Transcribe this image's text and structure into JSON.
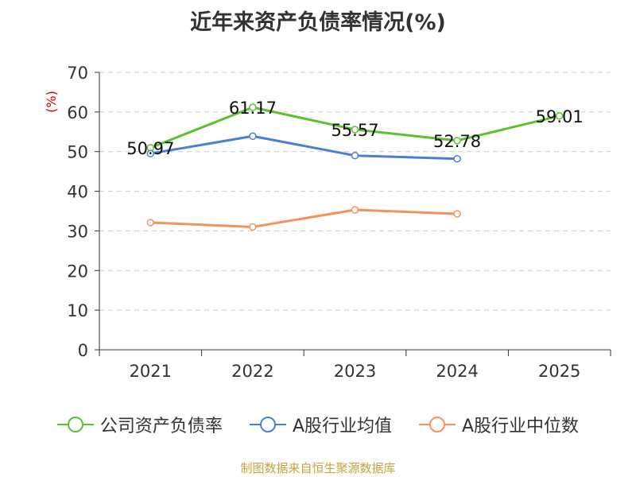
{
  "chart_data": {
    "type": "line",
    "title": "近年来资产负债率情况(%)",
    "ylabel": "(%)",
    "xlabel": "",
    "ylim": [
      0,
      70
    ],
    "yticks": [
      0,
      10,
      20,
      30,
      40,
      50,
      60,
      70
    ],
    "categories": [
      "2021",
      "2022",
      "2023",
      "2024",
      "2025"
    ],
    "grid": true,
    "legend_position": "bottom",
    "series": [
      {
        "name": "公司资产负债率",
        "color": "#5bc12c",
        "values": [
          50.97,
          61.17,
          55.57,
          52.78,
          59.01
        ],
        "data_labels": [
          "50.97",
          "61.17",
          "55.57",
          "52.78",
          "59.01"
        ]
      },
      {
        "name": "A股行业均值",
        "color": "#4a7fd8",
        "values": [
          49.5,
          53.9,
          49.0,
          48.2,
          null
        ]
      },
      {
        "name": "A股行业中位数",
        "color": "#f5915c",
        "values": [
          32.1,
          31.0,
          35.3,
          34.3,
          null
        ]
      }
    ]
  },
  "footer": {
    "source": "制图数据来自恒生聚源数据库"
  }
}
